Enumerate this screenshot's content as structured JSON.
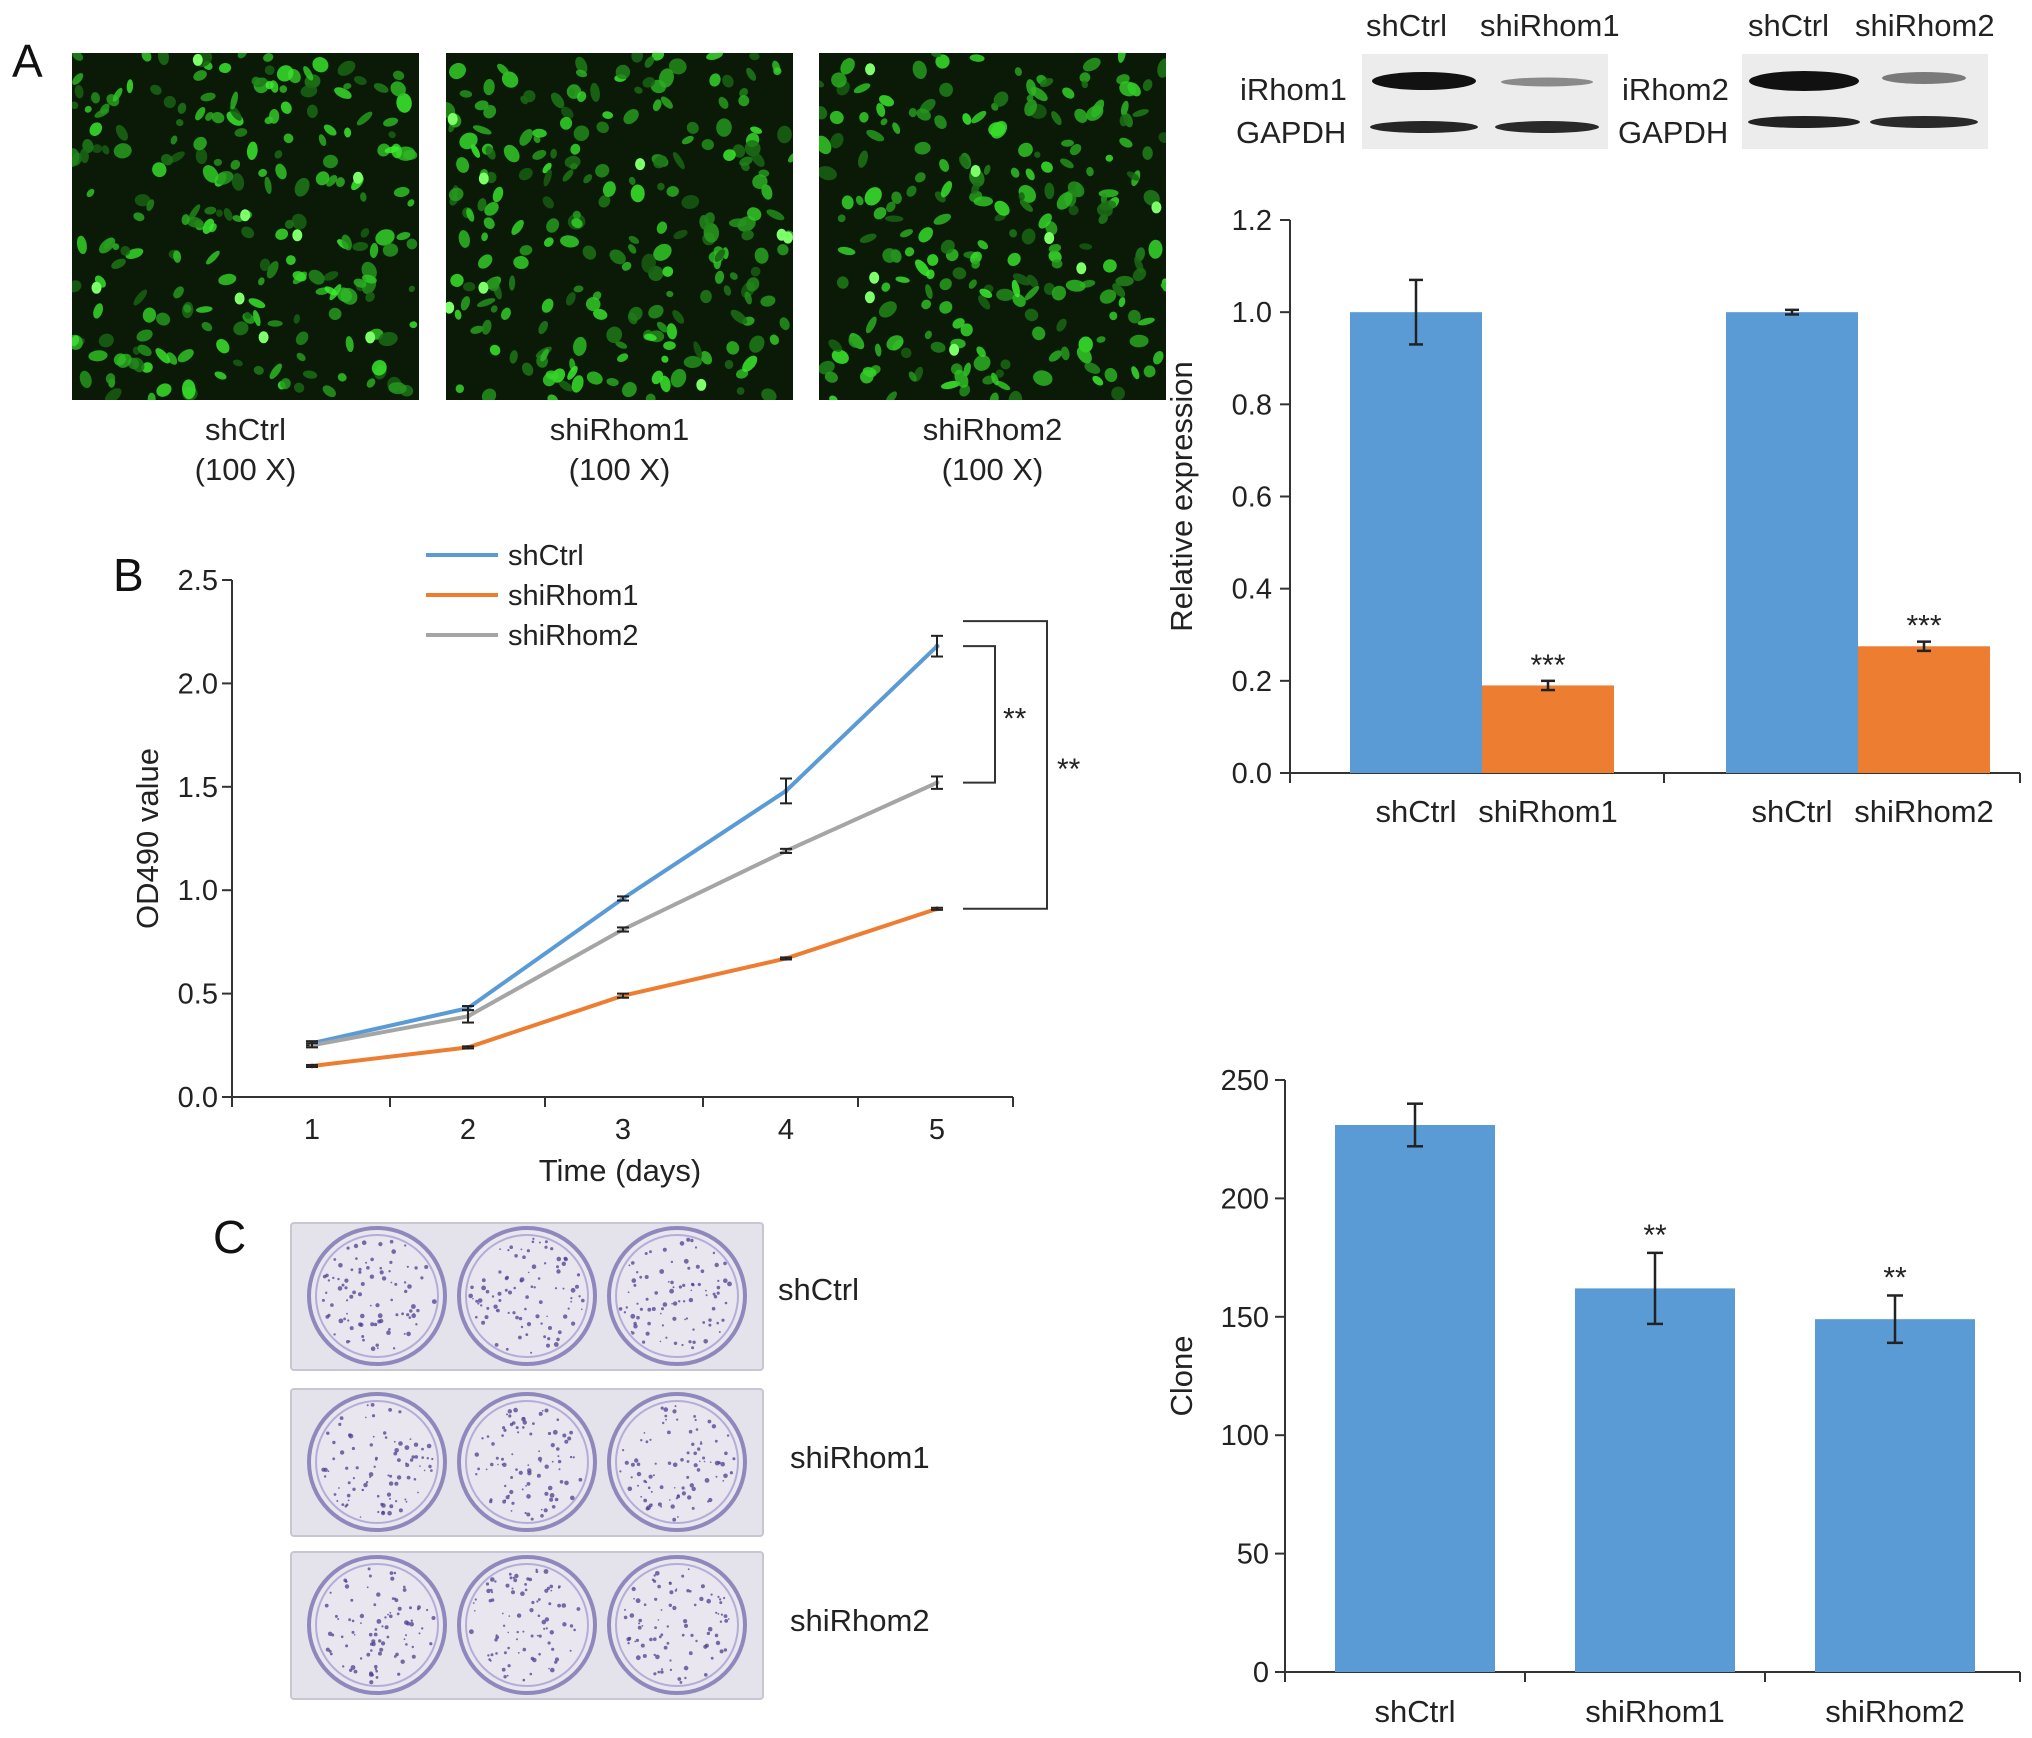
{
  "panels": {
    "a": "A",
    "b": "B",
    "c": "C"
  },
  "micrographs": [
    {
      "label": "shCtrl",
      "magnification": "(100 X)"
    },
    {
      "label": "shiRhom1",
      "magnification": "(100 X)"
    },
    {
      "label": "shiRhom2",
      "magnification": "(100 X)"
    }
  ],
  "western_blots": [
    {
      "lanes": [
        "shCtrl",
        "shiRhom1"
      ],
      "target": "iRhom1",
      "loading": "GAPDH"
    },
    {
      "lanes": [
        "shCtrl",
        "shiRhom2"
      ],
      "target": "iRhom2",
      "loading": "GAPDH"
    }
  ],
  "colony_plates": [
    "shCtrl",
    "shiRhom1",
    "shiRhom2"
  ],
  "colors": {
    "blue": "#5b9bd5",
    "orange": "#ed7d31",
    "gray": "#a5a5a5",
    "green_fluorescence": "#3cd23c"
  },
  "chart_data": [
    {
      "id": "relative-expression",
      "type": "bar",
      "ylabel": "Relative expression",
      "ylim": [
        0,
        1.2
      ],
      "yticks": [
        "0.0",
        "0.2",
        "0.4",
        "0.6",
        "0.8",
        "1.0",
        "1.2"
      ],
      "groups": [
        {
          "bars": [
            {
              "label": "shCtrl",
              "value": 1.0,
              "error": 0.07,
              "color": "#5b9bd5",
              "sig": ""
            },
            {
              "label": "shiRhom1",
              "value": 0.19,
              "error": 0.01,
              "color": "#ed7d31",
              "sig": "***"
            }
          ]
        },
        {
          "bars": [
            {
              "label": "shCtrl",
              "value": 1.0,
              "error": 0.005,
              "color": "#5b9bd5",
              "sig": ""
            },
            {
              "label": "shiRhom2",
              "value": 0.275,
              "error": 0.01,
              "color": "#ed7d31",
              "sig": "***"
            }
          ]
        }
      ]
    },
    {
      "id": "od490-growth",
      "type": "line",
      "xlabel": "Time (days)",
      "ylabel": "OD490 value",
      "x": [
        1,
        2,
        3,
        4,
        5
      ],
      "xticks": [
        "1",
        "2",
        "3",
        "4",
        "5"
      ],
      "ylim": [
        0,
        2.5
      ],
      "yticks": [
        "0.0",
        "0.5",
        "1.0",
        "1.5",
        "2.0",
        "2.5"
      ],
      "legend_position": "top-left",
      "series": [
        {
          "name": "shCtrl",
          "color": "#5b9bd5",
          "values": [
            0.26,
            0.43,
            0.96,
            1.48,
            2.18
          ],
          "errors": [
            0.01,
            0.01,
            0.01,
            0.06,
            0.05
          ]
        },
        {
          "name": "shiRhom1",
          "color": "#ed7d31",
          "values": [
            0.15,
            0.24,
            0.49,
            0.67,
            0.91
          ],
          "errors": [
            0.005,
            0.005,
            0.01,
            0.005,
            0.005
          ]
        },
        {
          "name": "shiRhom2",
          "color": "#a5a5a5",
          "values": [
            0.25,
            0.39,
            0.81,
            1.19,
            1.52
          ],
          "errors": [
            0.01,
            0.03,
            0.01,
            0.01,
            0.03
          ]
        }
      ],
      "significance": [
        {
          "between": [
            "shCtrl",
            "shiRhom2"
          ],
          "label": "**"
        },
        {
          "between": [
            "shCtrl",
            "shiRhom1"
          ],
          "label": "**"
        }
      ]
    },
    {
      "id": "clone-count",
      "type": "bar",
      "ylabel": "Clone",
      "ylim": [
        0,
        250
      ],
      "yticks": [
        "0",
        "50",
        "100",
        "150",
        "200",
        "250"
      ],
      "categories": [
        "shCtrl",
        "shiRhom1",
        "shiRhom2"
      ],
      "values": [
        231,
        162,
        149
      ],
      "errors": [
        9,
        15,
        10
      ],
      "sig": [
        "",
        "**",
        "**"
      ],
      "color": "#5b9bd5"
    }
  ]
}
